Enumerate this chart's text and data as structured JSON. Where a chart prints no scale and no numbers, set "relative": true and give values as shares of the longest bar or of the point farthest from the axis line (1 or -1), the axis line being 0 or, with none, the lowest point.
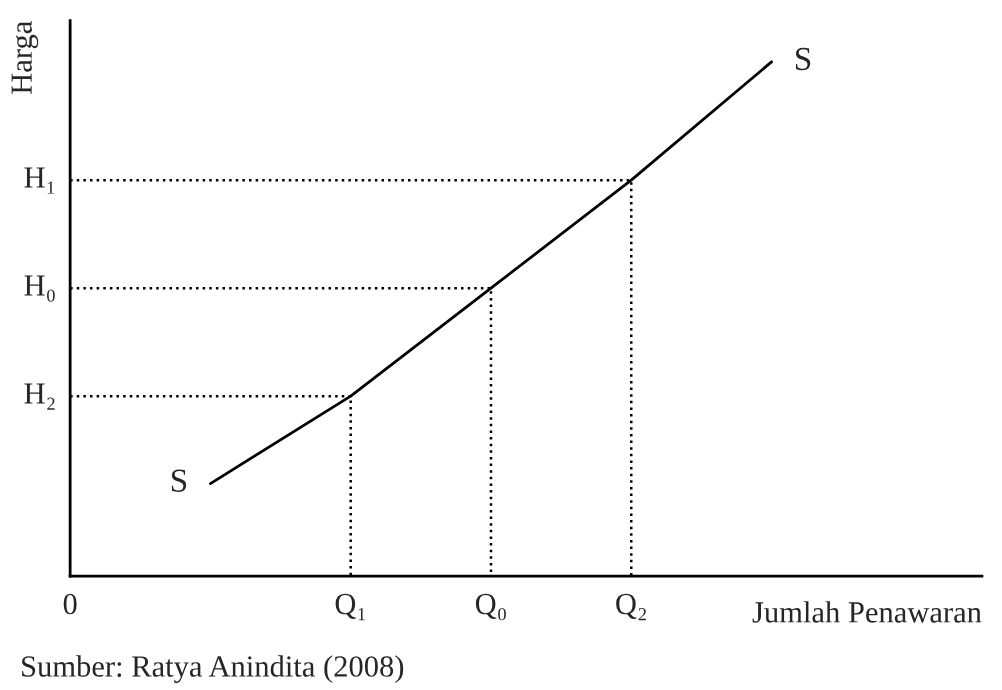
{
  "chart_data": {
    "type": "line",
    "relative": true,
    "xlabel": "Jumlah Penawaran",
    "ylabel": "Harga",
    "categories": [
      "0",
      null,
      "Q₁",
      "Q₀",
      "Q₂",
      null
    ],
    "series": [
      {
        "name": "S",
        "color": "#000000",
        "line_style": "solid",
        "values": [
          null,
          0.18,
          0.35,
          0.56,
          0.77,
          1
        ]
      },
      {
        "type": "step",
        "color": "#000000",
        "line_style": "dotted",
        "values": [
          0.35,
          0.35,
          0,
          null,
          null,
          null
        ]
      },
      {
        "type": "step",
        "color": "#000000",
        "line_style": "dotted",
        "values": [
          0.56,
          0.56,
          0.56,
          0,
          null,
          null
        ]
      },
      {
        "type": "step",
        "color": "#000000",
        "line_style": "dotted",
        "values": [
          0.77,
          0.77,
          0.77,
          0.77,
          0,
          null
        ]
      }
    ],
    "annotations": [
      {
        "text": "H₂",
        "x": "0",
        "y": 0.35
      },
      {
        "text": "H₀",
        "x": "0",
        "y": 0.56
      },
      {
        "text": "H₁",
        "x": "0",
        "y": 0.77
      },
      "Sumber: Ratya Anindita (2008)"
    ]
  }
}
